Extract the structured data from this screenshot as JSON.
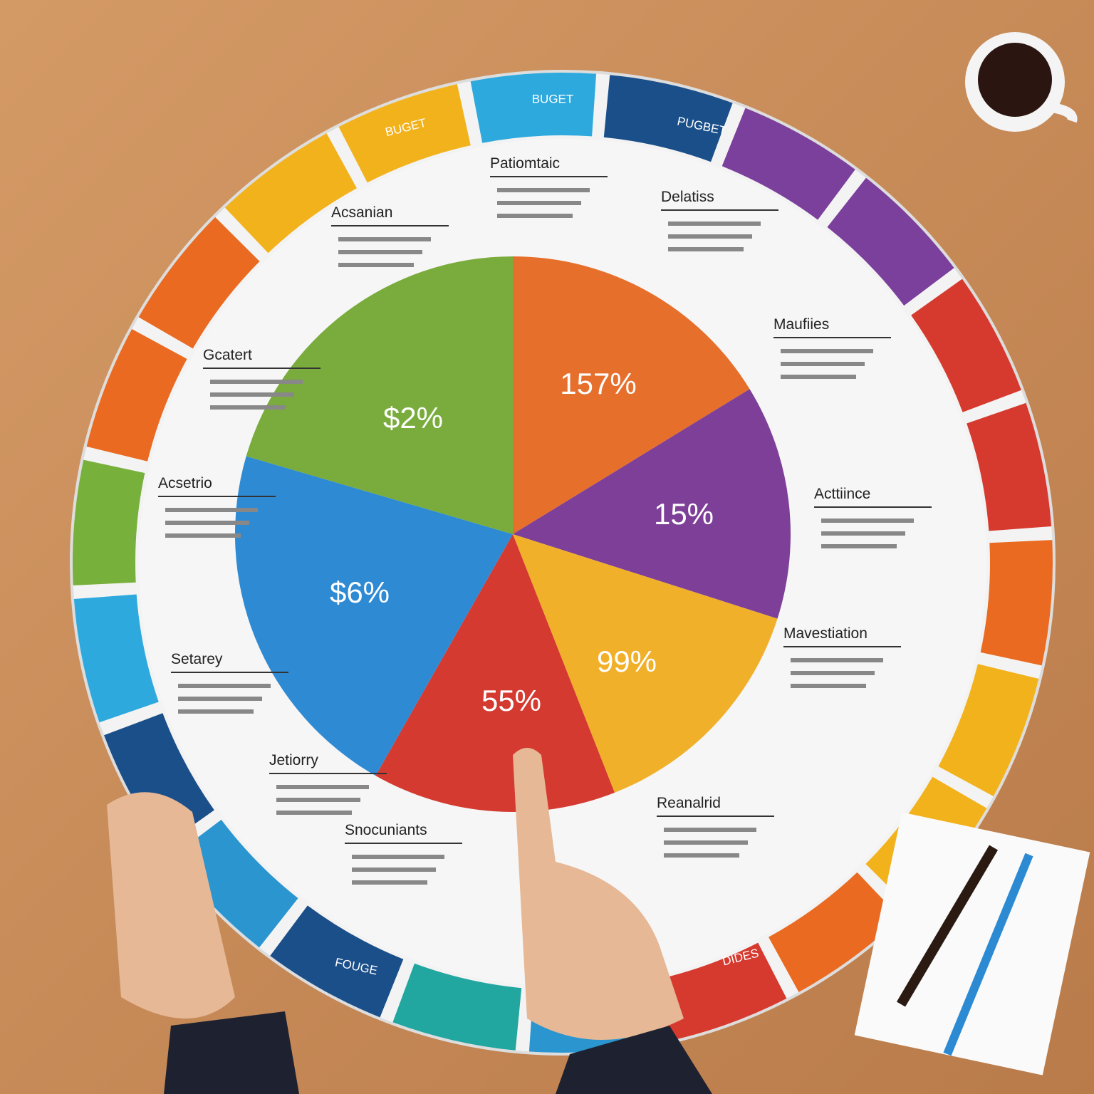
{
  "pie_labels": [
    "$2%",
    "157%",
    "15%",
    "99%",
    "55%",
    "$6%"
  ],
  "ring_labels": [
    "BUGET",
    "BUGET",
    "PUGBET",
    "FOUGE",
    "DIDES"
  ],
  "callouts": [
    "Patiomtaic",
    "Acsanian",
    "Delatiss",
    "Maufiies",
    "Gcatert",
    "Acsetrio",
    "Acttiince",
    "Mavestiation",
    "Setarey",
    "Jetiorry",
    "Reanalrid",
    "Snocuniants"
  ]
}
